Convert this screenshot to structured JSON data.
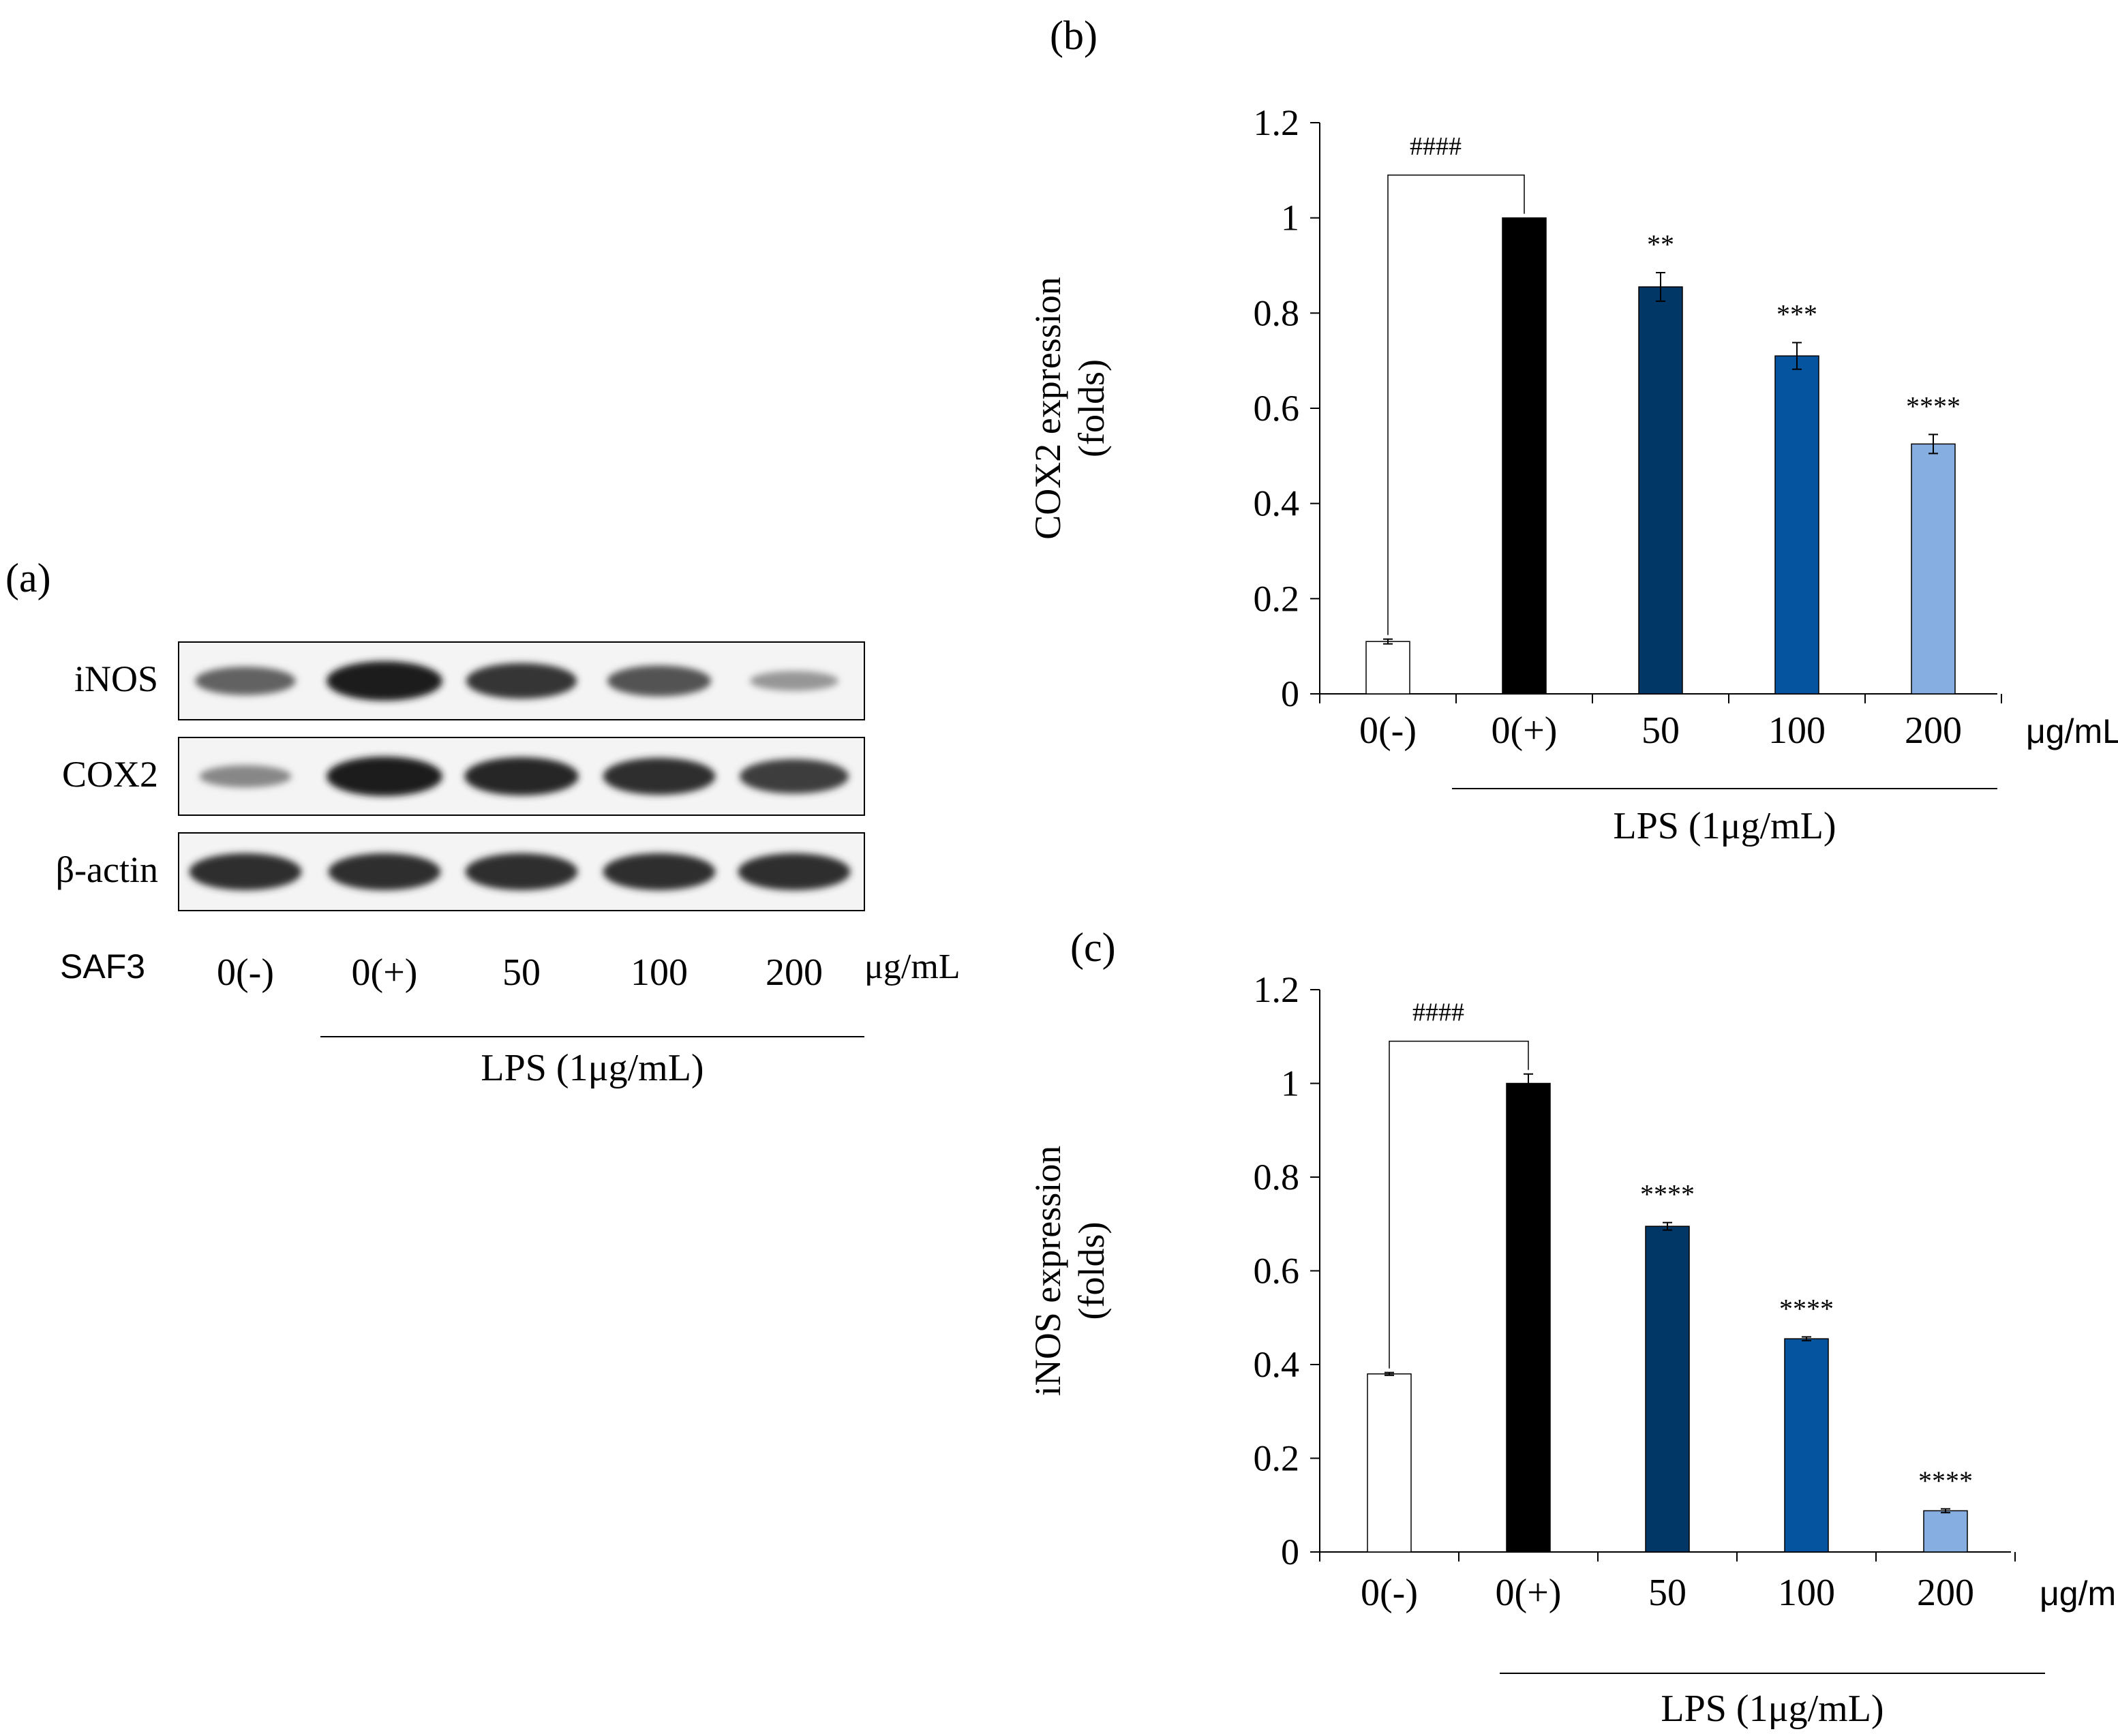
{
  "panel_a": {
    "label": "(a)",
    "rows": [
      {
        "name": "iNOS",
        "bands": [
          0.55,
          1.0,
          0.85,
          0.65,
          0.2
        ]
      },
      {
        "name": "COX2",
        "bands": [
          0.3,
          1.0,
          0.95,
          0.9,
          0.8
        ]
      },
      {
        "name": "β-actin",
        "bands": [
          0.9,
          0.9,
          0.9,
          0.9,
          0.9
        ]
      }
    ],
    "treatment_label": "SAF3",
    "lanes": [
      "0(-)",
      "0(+)",
      "50",
      "100",
      "200"
    ],
    "unit": "μg/mL",
    "lps_label": "LPS (1μg/mL)"
  },
  "chart_data": [
    {
      "panel_label": "(b)",
      "type": "bar",
      "ylabel_line1": "COX2 expression",
      "ylabel_line2": "(folds)",
      "categories": [
        "0(-)",
        "0(+)",
        "50",
        "100",
        "200"
      ],
      "values": [
        0.11,
        1.0,
        0.855,
        0.71,
        0.525
      ],
      "errors": [
        0.005,
        0.0,
        0.03,
        0.028,
        0.02
      ],
      "significance": [
        "",
        "",
        "**",
        "***",
        "****"
      ],
      "bar_colors": [
        "#ffffff",
        "#000000",
        "#003767",
        "#0454a0",
        "#86aee0"
      ],
      "ylim": [
        0,
        1.2
      ],
      "yticks": [
        "0",
        "0.2",
        "0.4",
        "0.6",
        "0.8",
        "1",
        "1.2"
      ],
      "x_unit": "μg/mL",
      "bracket_label": "####",
      "lps_label": "LPS (1μg/mL)"
    },
    {
      "panel_label": "(c)",
      "type": "bar",
      "ylabel_line1": "iNOS expression",
      "ylabel_line2": "(folds)",
      "categories": [
        "0(-)",
        "0(+)",
        "50",
        "100",
        "200"
      ],
      "values": [
        0.38,
        1.0,
        0.695,
        0.455,
        0.088
      ],
      "errors": [
        0.003,
        0.02,
        0.008,
        0.004,
        0.004
      ],
      "significance": [
        "",
        "",
        "****",
        "****",
        "****"
      ],
      "bar_colors": [
        "#ffffff",
        "#000000",
        "#003767",
        "#0454a0",
        "#86aee0"
      ],
      "ylim": [
        0,
        1.2
      ],
      "yticks": [
        "0",
        "0.2",
        "0.4",
        "0.6",
        "0.8",
        "1",
        "1.2"
      ],
      "x_unit": "μg/mL",
      "bracket_label": "####",
      "lps_label": "LPS (1μg/mL)"
    }
  ]
}
